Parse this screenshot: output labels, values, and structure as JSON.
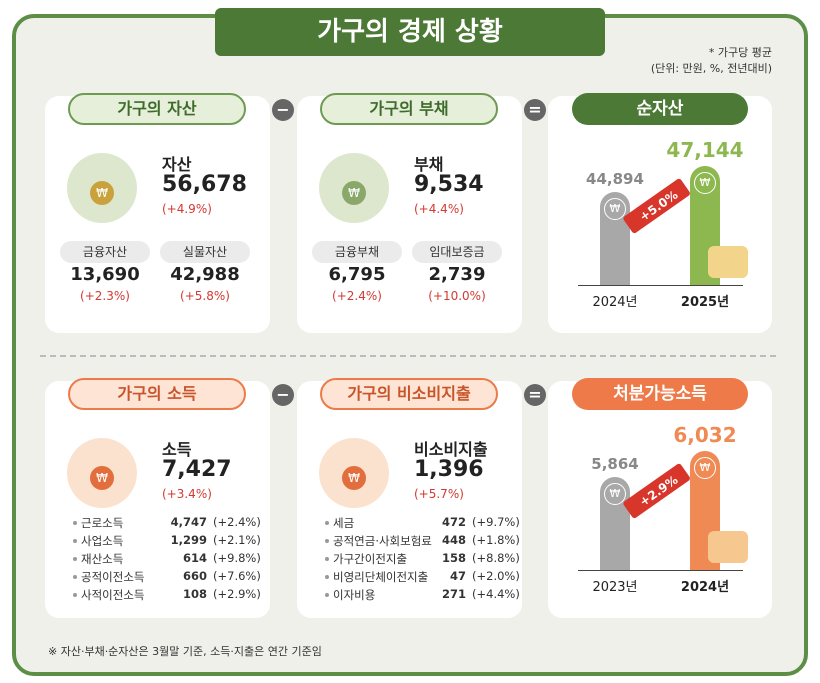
{
  "header": {
    "title": "가구의 경제 상황",
    "note1": "* 가구당 평균",
    "note2": "(단위: 만원, %, 전년대비)"
  },
  "assets": {
    "label": "가구의 자산",
    "name": "자산",
    "value": "56,678",
    "change": "(+4.9%)",
    "items": [
      {
        "label": "금융자산",
        "value": "13,690",
        "change": "(+2.3%)"
      },
      {
        "label": "실물자산",
        "value": "42,988",
        "change": "(+5.8%)"
      }
    ]
  },
  "debt": {
    "label": "가구의 부채",
    "name": "부채",
    "value": "9,534",
    "change": "(+4.4%)",
    "items": [
      {
        "label": "금융부채",
        "value": "6,795",
        "change": "(+2.4%)"
      },
      {
        "label": "임대보증금",
        "value": "2,739",
        "change": "(+10.0%)"
      }
    ]
  },
  "net_assets": {
    "label": "순자산",
    "bars": [
      {
        "year": "2024년",
        "value": "44,894"
      },
      {
        "year": "2025년",
        "value": "47,144"
      }
    ],
    "growth": "+5.0%"
  },
  "income": {
    "label": "가구의 소득",
    "name": "소득",
    "value": "7,427",
    "change": "(+3.4%)",
    "items": [
      {
        "label": "근로소득",
        "value": "4,747",
        "change": "(+2.4%)"
      },
      {
        "label": "사업소득",
        "value": "1,299",
        "change": "(+2.1%)"
      },
      {
        "label": "재산소득",
        "value": "614",
        "change": "(+9.8%)"
      },
      {
        "label": "공적이전소득",
        "value": "660",
        "change": "(+7.6%)"
      },
      {
        "label": "사적이전소득",
        "value": "108",
        "change": "(+2.9%)"
      }
    ]
  },
  "spending": {
    "label": "가구의 비소비지출",
    "name": "비소비지출",
    "value": "1,396",
    "change": "(+5.7%)",
    "items": [
      {
        "label": "세금",
        "value": "472",
        "change": "(+9.7%)"
      },
      {
        "label": "공적연금·사회보험료",
        "value": "448",
        "change": "(+1.8%)"
      },
      {
        "label": "가구간이전지출",
        "value": "158",
        "change": "(+8.8%)"
      },
      {
        "label": "비영리단체이전지출",
        "value": "47",
        "change": "(+2.0%)"
      },
      {
        "label": "이자비용",
        "value": "271",
        "change": "(+4.4%)"
      }
    ]
  },
  "disposable_income": {
    "label": "처분가능소득",
    "bars": [
      {
        "year": "2023년",
        "value": "5,864"
      },
      {
        "year": "2024년",
        "value": "6,032"
      }
    ],
    "growth": "+2.9%"
  },
  "footnote": "※ 자산·부채·순자산은 3월말 기준, 소득·지출은 연간 기준임"
}
